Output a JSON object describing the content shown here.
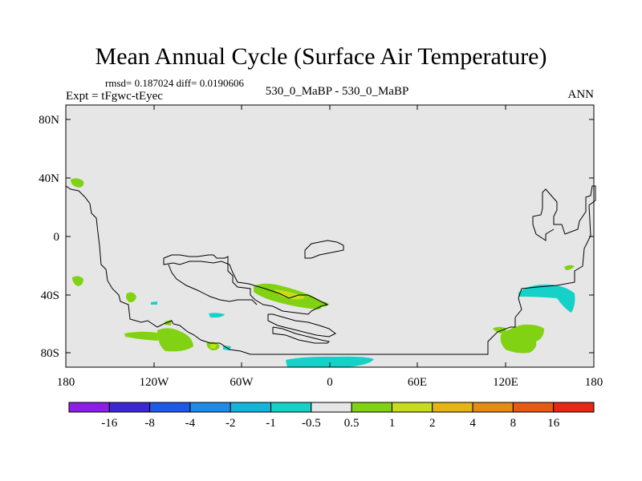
{
  "title": "Mean Annual Cycle (Surface Air Temperature)",
  "stats_line": "rmsd= 0.187024 diff= 0.0190606",
  "expt_line": "Expt = tFgwc-tEyec",
  "center_label": "530_0_MaBP - 530_0_MaBP",
  "season_label": "ANN",
  "map": {
    "lon_ticks": [
      "180",
      "120W",
      "60W",
      "0",
      "60E",
      "120E",
      "180"
    ],
    "lat_ticks": [
      "80N",
      "40N",
      "0",
      "40S",
      "80S"
    ],
    "background_color": "#e6e6e6"
  },
  "colorbar": {
    "labels": [
      "-16",
      "-8",
      "-4",
      "-2",
      "-1",
      "-0.5",
      "0.5",
      "1",
      "2",
      "4",
      "8",
      "16"
    ],
    "colors": [
      "#8c1ee6",
      "#3c28d2",
      "#1e5ae6",
      "#1e8ce6",
      "#14b4dc",
      "#14d2c8",
      "#e6e6e6",
      "#82d214",
      "#c8dc1e",
      "#e6b414",
      "#e68c14",
      "#e65a14",
      "#e62814"
    ]
  }
}
